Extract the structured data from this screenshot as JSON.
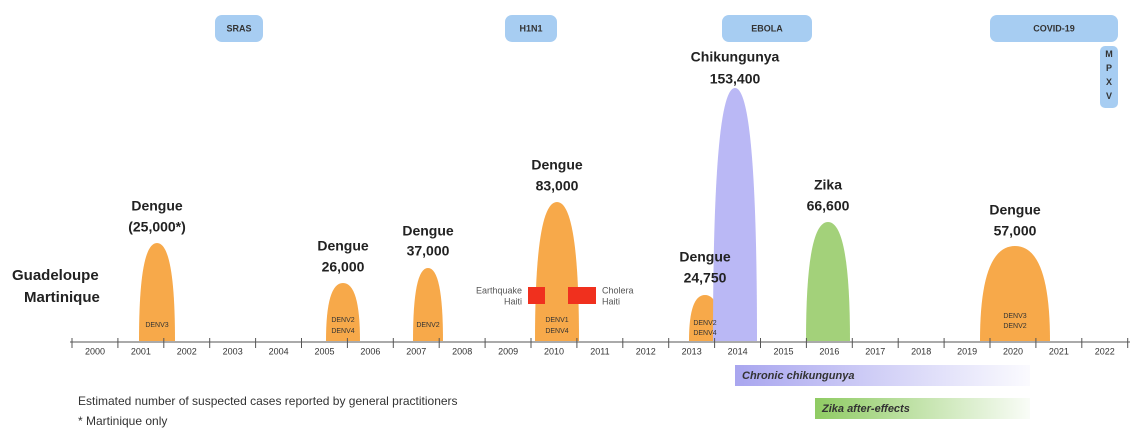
{
  "pills": [
    "SRAS",
    "H1N1",
    "EBOLA",
    "COVID-19",
    "MPXV"
  ],
  "region": [
    "Guadeloupe",
    "Martinique"
  ],
  "years": [
    "2000",
    "2001",
    "2002",
    "2003",
    "2004",
    "2005",
    "2006",
    "2007",
    "2008",
    "2009",
    "2010",
    "2011",
    "2012",
    "2013",
    "2014",
    "2015",
    "2016",
    "2017",
    "2018",
    "2019",
    "2020",
    "2021",
    "2022"
  ],
  "peaks": [
    {
      "name": "Dengue",
      "cases": "(25,000*)",
      "serotypes": [
        "DENV3"
      ]
    },
    {
      "name": "Dengue",
      "cases": "26,000",
      "serotypes": [
        "DENV2",
        "DENV4"
      ]
    },
    {
      "name": "Dengue",
      "cases": "37,000",
      "serotypes": [
        "DENV2"
      ]
    },
    {
      "name": "Dengue",
      "cases": "83,000",
      "serotypes": [
        "DENV1",
        "DENV4"
      ]
    },
    {
      "name": "Dengue",
      "cases": "24,750",
      "serotypes": [
        "DENV2",
        "DENV4"
      ]
    },
    {
      "name": "Chikungunya",
      "cases": "153,400",
      "serotypes": []
    },
    {
      "name": "Zika",
      "cases": "66,600",
      "serotypes": []
    },
    {
      "name": "Dengue",
      "cases": "57,000",
      "serotypes": [
        "DENV3",
        "DENV2"
      ]
    }
  ],
  "events": [
    {
      "lines": [
        "Earthquake",
        "Haiti"
      ]
    },
    {
      "lines": [
        "Cholera",
        "Haiti"
      ]
    }
  ],
  "bars": [
    "Chronic chikungunya",
    "Zika after-effects"
  ],
  "footnotes": [
    "Estimated number of suspected cases reported by general practitioners",
    "* Martinique only"
  ]
}
